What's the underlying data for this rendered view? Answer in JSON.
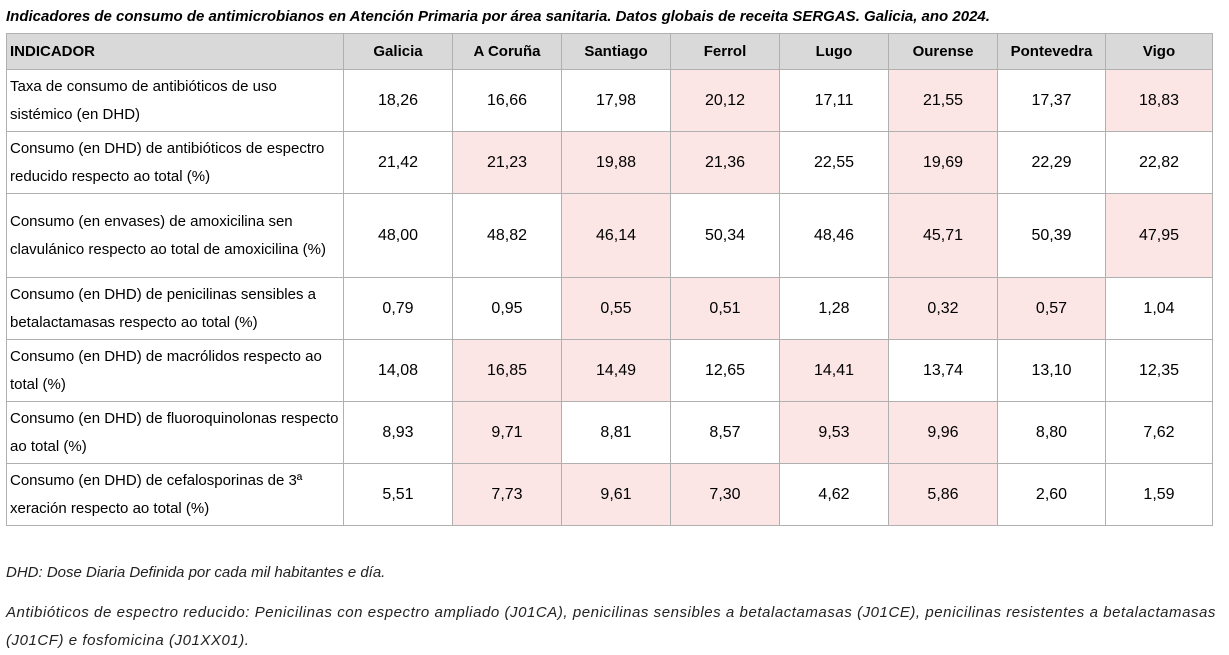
{
  "title": "Indicadores de consumo de antimicrobianos en Atención Primaria por área sanitaria. Datos globais de receita SERGAS. Galicia, ano 2024.",
  "table": {
    "headers": [
      "INDICADOR",
      "Galicia",
      "A Coruña",
      "Santiago",
      "Ferrol",
      "Lugo",
      "Ourense",
      "Pontevedra",
      "Vigo"
    ],
    "highlight_color": "#fbe5e5",
    "rows": [
      {
        "label": "Taxa de consumo de antibióticos de uso sistémico (en DHD)",
        "values": [
          "18,26",
          "16,66",
          "17,98",
          "20,12",
          "17,11",
          "21,55",
          "17,37",
          "18,83"
        ],
        "highlight": [
          false,
          false,
          false,
          true,
          false,
          true,
          false,
          true
        ]
      },
      {
        "label": "Consumo (en DHD) de antibióticos de espectro reducido respecto ao total (%)",
        "values": [
          "21,42",
          "21,23",
          "19,88",
          "21,36",
          "22,55",
          "19,69",
          "22,29",
          "22,82"
        ],
        "highlight": [
          false,
          true,
          true,
          true,
          false,
          true,
          false,
          false
        ]
      },
      {
        "label": "Consumo (en envases) de amoxicilina sen clavulánico respecto ao total de amoxicilina (%)",
        "values": [
          "48,00",
          "48,82",
          "46,14",
          "50,34",
          "48,46",
          "45,71",
          "50,39",
          "47,95"
        ],
        "highlight": [
          false,
          false,
          true,
          false,
          false,
          true,
          false,
          true
        ]
      },
      {
        "label": "Consumo (en DHD) de penicilinas sensibles a betalactamasas respecto ao total (%)",
        "values": [
          "0,79",
          "0,95",
          "0,55",
          "0,51",
          "1,28",
          "0,32",
          "0,57",
          "1,04"
        ],
        "highlight": [
          false,
          false,
          true,
          true,
          false,
          true,
          true,
          false
        ]
      },
      {
        "label": "Consumo (en DHD) de macrólidos respecto ao total (%)",
        "values": [
          "14,08",
          "16,85",
          "14,49",
          "12,65",
          "14,41",
          "13,74",
          "13,10",
          "12,35"
        ],
        "highlight": [
          false,
          true,
          true,
          false,
          true,
          false,
          false,
          false
        ]
      },
      {
        "label": "Consumo (en DHD) de fluoroquinolonas respecto ao total (%)",
        "values": [
          "8,93",
          "9,71",
          "8,81",
          "8,57",
          "9,53",
          "9,96",
          "8,80",
          "7,62"
        ],
        "highlight": [
          false,
          true,
          false,
          false,
          true,
          true,
          false,
          false
        ]
      },
      {
        "label": "Consumo (en DHD) de cefalosporinas de 3ª xeración respecto ao total (%)",
        "values": [
          "5,51",
          "7,73",
          "9,61",
          "7,30",
          "4,62",
          "5,86",
          "2,60",
          "1,59"
        ],
        "highlight": [
          false,
          true,
          true,
          true,
          false,
          true,
          false,
          false
        ]
      }
    ]
  },
  "notes": {
    "dhd": "DHD: Dose Diaria Definida por cada mil habitantes e día.",
    "narrow_spectrum": "Antibióticos de espectro reducido: Penicilinas con espectro ampliado (J01CA), penicilinas sensibles a betalactamasas (J01CE), penicilinas resistentes a betalactamasas (J01CF) e fosfomicina (J01XX01)."
  }
}
